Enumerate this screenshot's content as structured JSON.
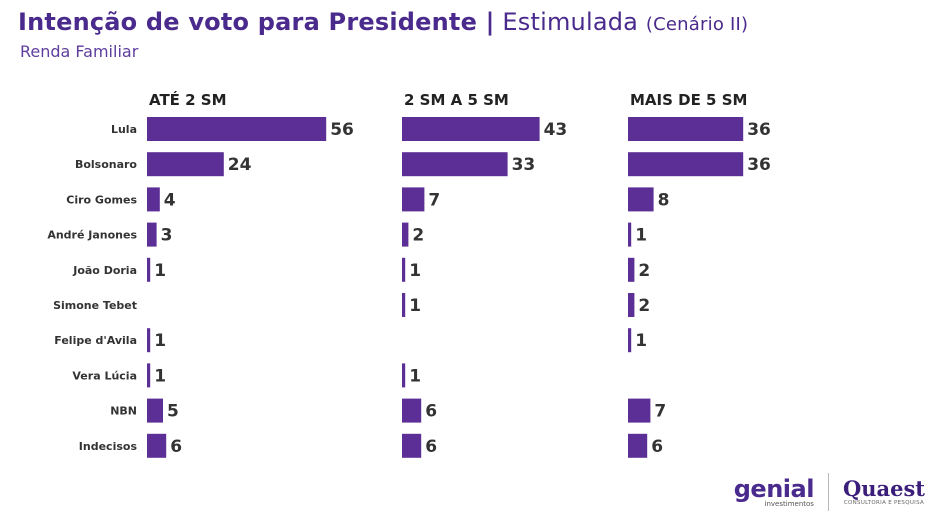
{
  "header": {
    "title_main": "Intenção de voto para Presidente |",
    "title_light": "Estimulada",
    "title_small": "(Cenário II)",
    "subtitle": "Renda Familiar"
  },
  "colors": {
    "bar": "#5b2f95",
    "label": "#333333",
    "title": "#4a2a8c"
  },
  "chart_data": {
    "type": "bar",
    "orientation": "horizontal",
    "categories": [
      "Lula",
      "Bolsonaro",
      "Ciro Gomes",
      "André Janones",
      "João Doria",
      "Simone Tebet",
      "Felipe d'Avila",
      "Vera Lúcia",
      "NBN",
      "Indecisos"
    ],
    "series": [
      {
        "name": "ATÉ 2 SM",
        "values": [
          56,
          24,
          4,
          3,
          1,
          null,
          1,
          1,
          5,
          6
        ]
      },
      {
        "name": "2 SM A 5 SM",
        "values": [
          43,
          33,
          7,
          2,
          1,
          1,
          null,
          1,
          6,
          6
        ]
      },
      {
        "name": "MAIS DE 5 SM",
        "values": [
          36,
          36,
          8,
          1,
          2,
          2,
          1,
          null,
          7,
          6
        ]
      }
    ],
    "unit": "%"
  },
  "footer": {
    "genial_word": "genial",
    "genial_sub": "investimentos",
    "quaest_word": "Quaest",
    "quaest_sub": "CONSULTORIA E PESQUISA"
  },
  "icons": [
    "genial-logo",
    "quaest-logo"
  ]
}
